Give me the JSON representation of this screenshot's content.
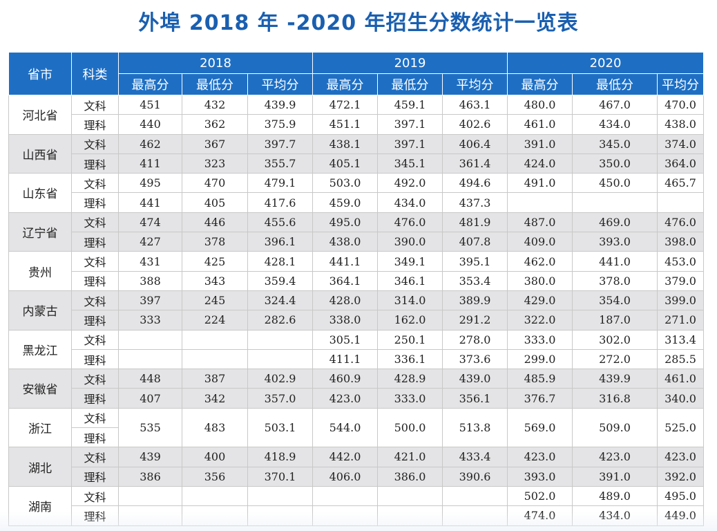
{
  "title": "外埠 2018 年 -2020 年招生分数统计一览表",
  "header": {
    "province": "省市",
    "category": "科类",
    "years": [
      "2018",
      "2019",
      "2020"
    ],
    "metrics": [
      "最高分",
      "最低分",
      "平均分"
    ]
  },
  "provinces": [
    {
      "name": "河北省",
      "merged": false,
      "rows": [
        {
          "cat": "文科",
          "v": [
            "451",
            "432",
            "439.9",
            "472.1",
            "459.1",
            "463.1",
            "480.0",
            "467.0",
            "470.0"
          ]
        },
        {
          "cat": "理科",
          "v": [
            "440",
            "362",
            "375.9",
            "451.1",
            "397.1",
            "402.6",
            "461.0",
            "434.0",
            "438.0"
          ]
        }
      ]
    },
    {
      "name": "山西省",
      "merged": false,
      "rows": [
        {
          "cat": "文科",
          "v": [
            "462",
            "367",
            "397.7",
            "438.1",
            "397.1",
            "406.4",
            "391.0",
            "345.0",
            "374.0"
          ]
        },
        {
          "cat": "理科",
          "v": [
            "411",
            "323",
            "355.7",
            "405.1",
            "345.1",
            "361.4",
            "424.0",
            "350.0",
            "364.0"
          ]
        }
      ]
    },
    {
      "name": "山东省",
      "merged": false,
      "rows": [
        {
          "cat": "文科",
          "v": [
            "495",
            "470",
            "479.1",
            "503.0",
            "492.0",
            "494.6",
            "491.0",
            "450.0",
            "465.7"
          ]
        },
        {
          "cat": "理科",
          "v": [
            "441",
            "405",
            "417.6",
            "459.0",
            "434.0",
            "437.3",
            "",
            "",
            ""
          ]
        }
      ]
    },
    {
      "name": "辽宁省",
      "merged": false,
      "rows": [
        {
          "cat": "文科",
          "v": [
            "474",
            "446",
            "455.6",
            "495.0",
            "476.0",
            "481.9",
            "487.0",
            "469.0",
            "476.0"
          ]
        },
        {
          "cat": "理科",
          "v": [
            "427",
            "378",
            "396.1",
            "438.0",
            "390.0",
            "407.8",
            "409.0",
            "393.0",
            "398.0"
          ]
        }
      ]
    },
    {
      "name": "贵州",
      "merged": false,
      "rows": [
        {
          "cat": "文科",
          "v": [
            "431",
            "425",
            "428.1",
            "441.1",
            "349.1",
            "395.1",
            "462.0",
            "441.0",
            "453.0"
          ]
        },
        {
          "cat": "理科",
          "v": [
            "388",
            "343",
            "359.4",
            "364.1",
            "346.1",
            "353.4",
            "380.0",
            "378.0",
            "379.0"
          ]
        }
      ]
    },
    {
      "name": "内蒙古",
      "merged": false,
      "rows": [
        {
          "cat": "文科",
          "v": [
            "397",
            "245",
            "324.4",
            "428.0",
            "314.0",
            "389.9",
            "429.0",
            "354.0",
            "399.0"
          ]
        },
        {
          "cat": "理科",
          "v": [
            "333",
            "224",
            "282.6",
            "338.0",
            "162.0",
            "291.2",
            "322.0",
            "187.0",
            "271.0"
          ]
        }
      ]
    },
    {
      "name": "黑龙江",
      "merged": false,
      "rows": [
        {
          "cat": "文科",
          "v": [
            "",
            "",
            "",
            "305.1",
            "250.1",
            "278.0",
            "333.0",
            "302.0",
            "313.4"
          ]
        },
        {
          "cat": "理科",
          "v": [
            "",
            "",
            "",
            "411.1",
            "336.1",
            "373.6",
            "299.0",
            "272.0",
            "285.5"
          ]
        }
      ]
    },
    {
      "name": "安徽省",
      "merged": false,
      "rows": [
        {
          "cat": "文科",
          "v": [
            "448",
            "387",
            "402.9",
            "460.9",
            "428.9",
            "439.0",
            "485.9",
            "439.9",
            "461.0"
          ]
        },
        {
          "cat": "理科",
          "v": [
            "407",
            "342",
            "357.0",
            "423.0",
            "333.0",
            "356.1",
            "376.7",
            "316.8",
            "340.0"
          ]
        }
      ]
    },
    {
      "name": "浙江",
      "merged": true,
      "rows": [
        {
          "cat": "文科",
          "v": [
            "535",
            "483",
            "503.1",
            "544.0",
            "500.0",
            "513.8",
            "569.0",
            "509.0",
            "525.0"
          ]
        },
        {
          "cat": "理科",
          "v": []
        }
      ]
    },
    {
      "name": "湖北",
      "merged": false,
      "rows": [
        {
          "cat": "文科",
          "v": [
            "439",
            "400",
            "418.9",
            "442.0",
            "421.0",
            "433.4",
            "423.0",
            "423.0",
            "423.0"
          ]
        },
        {
          "cat": "理科",
          "v": [
            "386",
            "356",
            "370.1",
            "406.0",
            "386.0",
            "390.6",
            "393.0",
            "391.0",
            "392.0"
          ]
        }
      ]
    },
    {
      "name": "湖南",
      "merged": false,
      "rows": [
        {
          "cat": "文科",
          "v": [
            "",
            "",
            "",
            "",
            "",
            "",
            "502.0",
            "489.0",
            "495.0"
          ]
        },
        {
          "cat": "理科",
          "v": [
            "",
            "",
            "",
            "",
            "",
            "",
            "474.0",
            "434.0",
            "449.0"
          ]
        }
      ]
    }
  ]
}
